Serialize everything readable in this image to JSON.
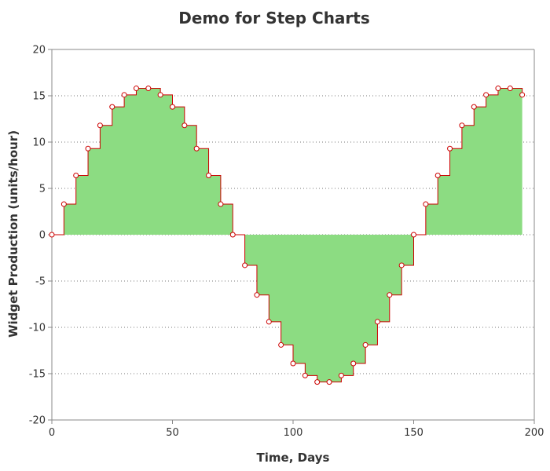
{
  "chart_data": {
    "type": "area",
    "title": "Demo for Step Charts",
    "xlabel": "Time, Days",
    "ylabel": "Widget Production (units/hour)",
    "xlim": [
      0,
      200
    ],
    "ylim": [
      -20,
      20
    ],
    "xticks": [
      0,
      50,
      100,
      150,
      200
    ],
    "yticks": [
      -20,
      -15,
      -10,
      -5,
      0,
      5,
      10,
      15,
      20
    ],
    "grid": "horizontal dotted",
    "step": "post",
    "series": [
      {
        "x": [
          0,
          5,
          10,
          15,
          20,
          25,
          30,
          35,
          40,
          45,
          50,
          55,
          60,
          65,
          70,
          75,
          80,
          85,
          90,
          95,
          100,
          105,
          110,
          115,
          120,
          125,
          130,
          135,
          140,
          145,
          150,
          155,
          160,
          165,
          170,
          175,
          180,
          185,
          190,
          195
        ],
        "values": [
          0,
          3.3,
          6.4,
          9.3,
          11.8,
          13.8,
          15.1,
          15.8,
          15.8,
          15.1,
          13.8,
          11.8,
          9.3,
          6.4,
          3.3,
          0,
          -3.3,
          -6.5,
          -9.4,
          -11.9,
          -13.9,
          -15.2,
          -15.9,
          -15.9,
          -15.2,
          -13.9,
          -11.9,
          -9.4,
          -6.5,
          -3.3,
          0,
          3.3,
          6.4,
          9.3,
          11.8,
          13.8,
          15.1,
          15.8,
          15.8,
          15.1
        ]
      }
    ],
    "colors": {
      "fill": "#8cdc82",
      "line": "#cc0000",
      "marker_fill": "#ffffff",
      "marker_stroke": "#cc0000",
      "axis": "#888888",
      "grid": "#777777"
    }
  }
}
